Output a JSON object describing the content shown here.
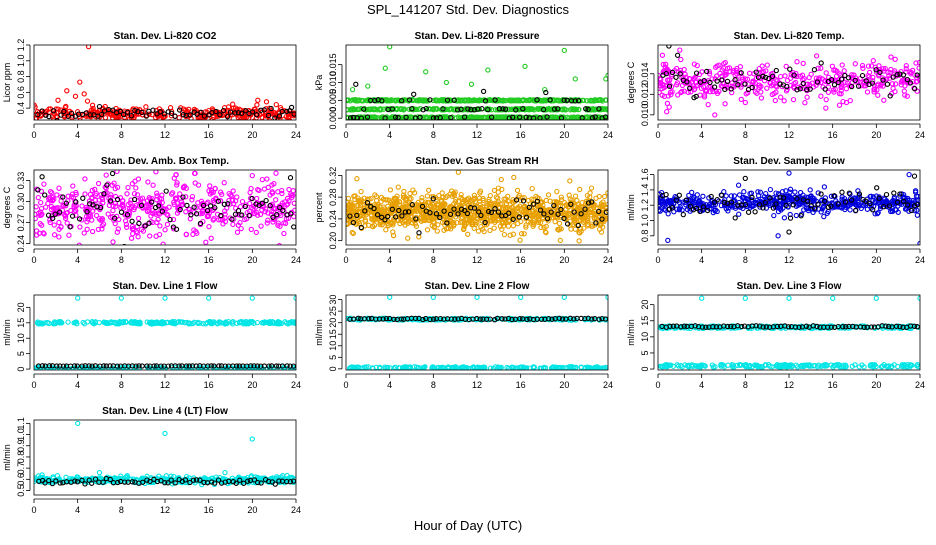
{
  "figure": {
    "title": "SPL_141207  Std. Dev. Diagnostics",
    "xlabel": "Hour of Day (UTC)"
  },
  "colors": {
    "red": "#ff0000",
    "green": "#22cc22",
    "magenta": "#ff00ff",
    "orange": "#e8a000",
    "blue": "#0000dd",
    "cyan": "#00e5e5",
    "black": "#000000"
  },
  "chart_data": [
    {
      "type": "scatter",
      "title": "Stan. Dev. Li-820 CO2",
      "xlabel": "",
      "ylabel": "Licor ppm",
      "xlim": [
        0,
        24
      ],
      "xticks": [
        0,
        4,
        8,
        12,
        16,
        20,
        24
      ],
      "ylim": [
        0.25,
        1.2
      ],
      "yticks": [
        0.4,
        0.6,
        0.8,
        1.0,
        1.2
      ],
      "ytick_labels": [
        "0.4",
        "0.6",
        "0.8",
        "1.0",
        "1.2"
      ],
      "series": [
        {
          "color": "red",
          "gen": {
            "n": 320,
            "center": 0.33,
            "spread": 0.04,
            "outliers": [
              [
                3.0,
                0.62
              ],
              [
                3.8,
                0.55
              ],
              [
                4.2,
                0.73
              ],
              [
                4.6,
                0.58
              ],
              [
                5.0,
                1.18
              ],
              [
                4.9,
                0.49
              ],
              [
                2.2,
                0.5
              ],
              [
                20.5,
                0.5
              ],
              [
                21.3,
                0.48
              ],
              [
                18.2,
                0.45
              ]
            ]
          }
        },
        {
          "color": "black",
          "gen": {
            "n": 70,
            "center": 0.33,
            "spread": 0.03,
            "outliers": [
              [
                6.0,
                0.42
              ],
              [
                23.6,
                0.41
              ]
            ]
          }
        }
      ]
    },
    {
      "type": "scatter",
      "title": "Stan. Dev. Li-820 Pressure",
      "xlabel": "",
      "ylabel": "kPa",
      "xlim": [
        0,
        24
      ],
      "xticks": [
        0,
        4,
        8,
        12,
        16,
        20,
        24
      ],
      "ylim": [
        -0.0005,
        0.0205
      ],
      "yticks": [
        0.0,
        0.005,
        0.01,
        0.015
      ],
      "ytick_labels": [
        "0.000",
        "0.005",
        "0.010",
        "0.015"
      ],
      "series": [
        {
          "color": "green",
          "gen": {
            "n": 900,
            "levels": [
              0.0002,
              0.0025,
              0.005
            ],
            "outliers": [
              [
                4.0,
                0.02
              ],
              [
                20.0,
                0.019
              ],
              [
                3.6,
                0.014
              ],
              [
                7.3,
                0.013
              ],
              [
                13.0,
                0.0135
              ],
              [
                16.4,
                0.0145
              ],
              [
                23.8,
                0.011
              ],
              [
                24.0,
                0.012
              ],
              [
                0.6,
                0.008
              ],
              [
                9.2,
                0.01
              ],
              [
                11.5,
                0.0095
              ],
              [
                21.0,
                0.011
              ],
              [
                18.2,
                0.008
              ],
              [
                2.0,
                0.009
              ]
            ]
          }
        },
        {
          "color": "black",
          "gen": {
            "n": 75,
            "levels": [
              0.0002,
              0.0025,
              0.005
            ],
            "outliers": [
              [
                0.9,
                0.0095
              ],
              [
                12.6,
                0.0075
              ],
              [
                18.3,
                0.0072
              ],
              [
                6.2,
                0.0067
              ]
            ]
          }
        }
      ]
    },
    {
      "type": "scatter",
      "title": "Stan. Dev. Li-820 Temp.",
      "xlabel": "",
      "ylabel": "degrees C",
      "xlim": [
        0,
        24
      ],
      "xticks": [
        0,
        4,
        8,
        12,
        16,
        20,
        24
      ],
      "ylim": [
        0.0095,
        0.0168
      ],
      "yticks": [
        0.01,
        0.012,
        0.014
      ],
      "ytick_labels": [
        "0.010",
        "0.012",
        "0.014"
      ],
      "series": [
        {
          "color": "magenta",
          "gen": {
            "n": 420,
            "center": 0.0133,
            "spread": 0.0009,
            "outliers": [
              [
                0.4,
                0.0158
              ],
              [
                2.0,
                0.0163
              ],
              [
                4.6,
                0.011
              ],
              [
                5.2,
                0.01
              ],
              [
                8.0,
                0.0112
              ],
              [
                0.6,
                0.0118
              ]
            ]
          }
        },
        {
          "color": "black",
          "gen": {
            "n": 75,
            "center": 0.0133,
            "spread": 0.0007,
            "outliers": [
              [
                1.0,
                0.0167
              ],
              [
                1.8,
                0.0158
              ],
              [
                3.5,
                0.0118
              ]
            ]
          }
        }
      ]
    },
    {
      "type": "scatter",
      "title": "Stan. Dev. Amb. Box Temp.",
      "xlabel": "",
      "ylabel": "degrees C",
      "xlim": [
        0,
        24
      ],
      "xticks": [
        0,
        4,
        8,
        12,
        16,
        20,
        24
      ],
      "ylim": [
        0.238,
        0.345
      ],
      "yticks": [
        0.24,
        0.27,
        0.3,
        0.33
      ],
      "ytick_labels": [
        "0.24",
        "0.27",
        "0.30",
        "0.33"
      ],
      "series": [
        {
          "color": "magenta",
          "gen": {
            "n": 520,
            "center": 0.29,
            "spread": 0.02,
            "outliers": [
              [
                7.6,
                0.343
              ],
              [
                13.0,
                0.338
              ],
              [
                20.0,
                0.337
              ]
            ]
          }
        },
        {
          "color": "black",
          "gen": {
            "n": 75,
            "center": 0.29,
            "spread": 0.016,
            "outliers": [
              [
                7.2,
                0.34
              ],
              [
                23.5,
                0.334
              ]
            ]
          }
        }
      ]
    },
    {
      "type": "scatter",
      "title": "Stan. Dev. Gas Stream RH",
      "xlabel": "",
      "ylabel": "percent",
      "xlim": [
        0,
        24
      ],
      "xticks": [
        0,
        4,
        8,
        12,
        16,
        20,
        24
      ],
      "ylim": [
        0.192,
        0.33
      ],
      "yticks": [
        0.2,
        0.24,
        0.28,
        0.32
      ],
      "ytick_labels": [
        "0.20",
        "0.24",
        "0.28",
        "0.32"
      ],
      "series": [
        {
          "color": "orange",
          "gen": {
            "n": 1100,
            "center": 0.252,
            "spread": 0.017,
            "outliers": [
              [
                10.3,
                0.326
              ],
              [
                1.0,
                0.314
              ],
              [
                20.5,
                0.31
              ]
            ]
          }
        },
        {
          "color": "black",
          "gen": {
            "n": 75,
            "center": 0.252,
            "spread": 0.012,
            "outliers": []
          }
        }
      ]
    },
    {
      "type": "scatter",
      "title": "Stan. Dev. Sample Flow",
      "xlabel": "",
      "ylabel": "ml/min",
      "xlim": [
        0,
        24
      ],
      "xticks": [
        0,
        4,
        8,
        12,
        16,
        20,
        24
      ],
      "ylim": [
        0.68,
        1.66
      ],
      "yticks": [
        0.8,
        1.0,
        1.2,
        1.4,
        1.6
      ],
      "ytick_labels": [
        "0.8",
        "1.0",
        "1.2",
        "1.4",
        "1.6"
      ],
      "series": [
        {
          "color": "blue",
          "gen": {
            "n": 520,
            "center": 1.23,
            "spread": 0.07,
            "outliers": [
              [
                0.9,
                0.74
              ],
              [
                24.0,
                0.7
              ],
              [
                11.0,
                0.8
              ],
              [
                23.0,
                1.6
              ],
              [
                12.0,
                1.62
              ]
            ]
          }
        },
        {
          "color": "black",
          "gen": {
            "n": 75,
            "center": 1.22,
            "spread": 0.08,
            "outliers": [
              [
                8.0,
                1.55
              ],
              [
                12.0,
                0.85
              ],
              [
                23.5,
                1.58
              ]
            ]
          }
        }
      ]
    },
    {
      "type": "scatter",
      "title": "Stan. Dev. Line 1 Flow",
      "xlabel": "",
      "ylabel": "ml/min",
      "xlim": [
        0,
        24
      ],
      "xticks": [
        0,
        4,
        8,
        12,
        16,
        20,
        24
      ],
      "ylim": [
        -0.3,
        24
      ],
      "yticks": [
        0,
        5,
        10,
        15,
        20
      ],
      "ytick_labels": [
        "0",
        "5",
        "10",
        "15",
        "20"
      ],
      "series": [
        {
          "color": "cyan",
          "gen": {
            "n": 420,
            "levels": [
              15.0,
              0.2
            ],
            "jitter": 0.4,
            "outliers": [
              [
                4.0,
                23.0
              ],
              [
                8.0,
                23.0
              ],
              [
                12.0,
                23.0
              ],
              [
                16.0,
                23.0
              ],
              [
                20.0,
                23.0
              ],
              [
                24.0,
                23.0
              ]
            ]
          }
        },
        {
          "color": "black",
          "gen": {
            "n": 72,
            "levels": [
              1.0
            ],
            "jitter": 0.05,
            "outliers": []
          }
        }
      ]
    },
    {
      "type": "scatter",
      "title": "Stan. Dev. Line 2 Flow",
      "xlabel": "",
      "ylabel": "ml/min",
      "xlim": [
        0,
        24
      ],
      "xticks": [
        0,
        4,
        8,
        12,
        16,
        20,
        24
      ],
      "ylim": [
        -0.5,
        32
      ],
      "yticks": [
        0,
        5,
        10,
        15,
        20,
        25,
        30
      ],
      "ytick_labels": [
        "0",
        "5",
        "10",
        "15",
        "20",
        "25",
        "30"
      ],
      "series": [
        {
          "color": "cyan",
          "gen": {
            "n": 420,
            "levels": [
              21.5,
              0.5
            ],
            "jitter": 0.4,
            "outliers": [
              [
                4.0,
                31.0
              ],
              [
                8.0,
                31.0
              ],
              [
                12.0,
                31.0
              ],
              [
                16.0,
                31.0
              ],
              [
                20.0,
                31.0
              ],
              [
                24.0,
                31.0
              ]
            ]
          }
        },
        {
          "color": "black",
          "gen": {
            "n": 72,
            "levels": [
              21.6
            ],
            "jitter": 0.3,
            "outliers": []
          }
        }
      ]
    },
    {
      "type": "scatter",
      "title": "Stan. Dev. Line 3 Flow",
      "xlabel": "",
      "ylabel": "ml/min",
      "xlim": [
        0,
        24
      ],
      "xticks": [
        0,
        4,
        8,
        12,
        16,
        20,
        24
      ],
      "ylim": [
        -0.3,
        23
      ],
      "yticks": [
        0,
        5,
        10,
        15,
        20
      ],
      "ytick_labels": [
        "0",
        "5",
        "10",
        "15",
        "20"
      ],
      "series": [
        {
          "color": "cyan",
          "gen": {
            "n": 420,
            "levels": [
              13.0,
              1.0
            ],
            "jitter": 0.4,
            "outliers": [
              [
                4.0,
                22.0
              ],
              [
                8.0,
                22.0
              ],
              [
                12.0,
                22.0
              ],
              [
                16.0,
                22.0
              ],
              [
                20.0,
                22.0
              ],
              [
                24.0,
                22.0
              ]
            ]
          }
        },
        {
          "color": "black",
          "gen": {
            "n": 72,
            "levels": [
              13.2
            ],
            "jitter": 0.25,
            "outliers": []
          }
        }
      ]
    },
    {
      "type": "scatter",
      "title": "Stan. Dev. Line 4 (LT) Flow",
      "xlabel": "",
      "ylabel": "ml/min",
      "xlim": [
        0,
        24
      ],
      "xticks": [
        0,
        4,
        8,
        12,
        16,
        20,
        24
      ],
      "ylim": [
        0.46,
        1.13
      ],
      "yticks": [
        0.5,
        0.6,
        0.7,
        0.8,
        0.9,
        1.0,
        1.1
      ],
      "ytick_labels": [
        "0.5",
        "0.6",
        "0.7",
        "0.8",
        "0.9",
        "1.0",
        "1.1"
      ],
      "series": [
        {
          "color": "cyan",
          "gen": {
            "n": 420,
            "center": 0.595,
            "spread": 0.015,
            "outliers": [
              [
                4.0,
                1.1
              ],
              [
                12.0,
                1.01
              ],
              [
                20.0,
                0.96
              ],
              [
                6.0,
                0.66
              ],
              [
                17.5,
                0.66
              ]
            ]
          }
        },
        {
          "color": "black",
          "gen": {
            "n": 72,
            "center": 0.58,
            "spread": 0.012,
            "outliers": []
          }
        }
      ]
    }
  ]
}
